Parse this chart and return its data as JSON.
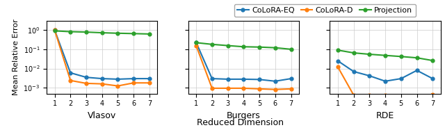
{
  "x": [
    1,
    2,
    3,
    4,
    5,
    6,
    7
  ],
  "vlasov": {
    "colora_eq": [
      1.0,
      0.006,
      0.0035,
      0.003,
      0.0028,
      0.003,
      0.003
    ],
    "colora_d": [
      1.0,
      0.0024,
      0.0017,
      0.0016,
      0.00125,
      0.0018,
      0.0018
    ],
    "projection": [
      0.9,
      0.82,
      0.78,
      0.72,
      0.68,
      0.65,
      0.62
    ]
  },
  "burgers": {
    "colora_eq": [
      0.22,
      0.003,
      0.0028,
      0.0028,
      0.0027,
      0.0022,
      0.003
    ],
    "colora_d": [
      0.15,
      0.00095,
      0.00095,
      0.00095,
      0.00088,
      0.00082,
      0.00088
    ],
    "projection": [
      0.22,
      0.18,
      0.155,
      0.135,
      0.13,
      0.12,
      0.1
    ]
  },
  "rde": {
    "colora_eq": [
      0.025,
      0.007,
      0.0042,
      0.0022,
      0.003,
      0.008,
      0.003
    ],
    "colora_d": [
      0.012,
      0.00042,
      0.00042,
      0.00042,
      0.00038,
      0.00033,
      0.00045
    ],
    "projection": [
      0.09,
      0.065,
      0.055,
      0.048,
      0.042,
      0.036,
      0.026
    ]
  },
  "colors": {
    "colora_eq": "#1f77b4",
    "colora_d": "#ff7f0e",
    "projection": "#2ca02c"
  },
  "labels": {
    "colora_eq": "CoLoRA-EQ",
    "colora_d": "CoLoRA-D",
    "projection": "Projection"
  },
  "subplot_titles": [
    "Vlasov",
    "Burgers",
    "RDE"
  ],
  "xlabel": "Reduced Dimension",
  "ylabel": "Mean Relative Error",
  "ylim": [
    0.0005,
    3.0
  ],
  "marker": "o",
  "markersize": 3.5,
  "linewidth": 1.5
}
